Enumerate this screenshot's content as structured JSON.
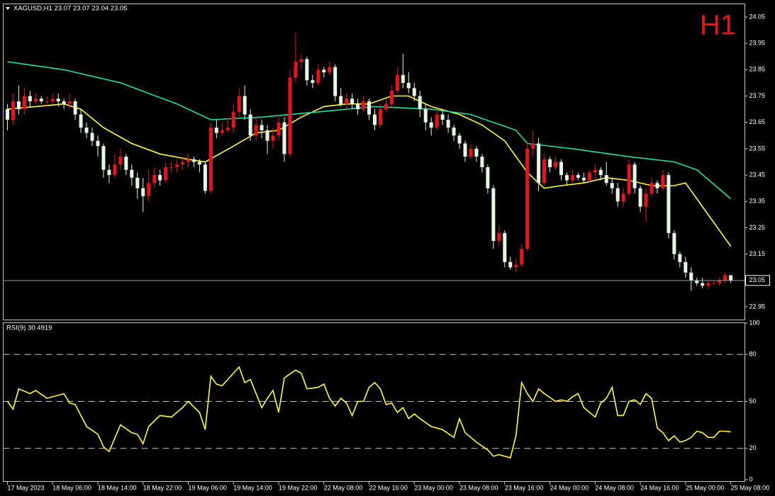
{
  "chart_data": [
    {
      "type": "candlestick",
      "title": "XAGUSD,H1  23.07 23.07 23.04 23.05",
      "annotation": "H1",
      "bull_color": "#e8141c",
      "bear_color": "#e4f8e4",
      "ylim": [
        22.9,
        24.1
      ],
      "yticks": [
        22.95,
        23.05,
        23.15,
        23.25,
        23.35,
        23.45,
        23.55,
        23.65,
        23.75,
        23.85,
        23.95,
        24.05
      ],
      "xlim": [
        -0.75,
        130.5
      ],
      "last_price": 23.05,
      "ohlc": [
        [
          23.7,
          23.72,
          23.62,
          23.66
        ],
        [
          23.66,
          23.76,
          23.64,
          23.73
        ],
        [
          23.73,
          23.79,
          23.68,
          23.7
        ],
        [
          23.7,
          23.78,
          23.68,
          23.75
        ],
        [
          23.75,
          23.77,
          23.71,
          23.73
        ],
        [
          23.73,
          23.76,
          23.72,
          23.74
        ],
        [
          23.74,
          23.75,
          23.72,
          23.73
        ],
        [
          23.73,
          23.75,
          23.71,
          23.73
        ],
        [
          23.73,
          23.76,
          23.72,
          23.74
        ],
        [
          23.74,
          23.76,
          23.71,
          23.73
        ],
        [
          23.73,
          23.74,
          23.7,
          23.72
        ],
        [
          23.72,
          23.76,
          23.7,
          23.73
        ],
        [
          23.73,
          23.74,
          23.66,
          23.68
        ],
        [
          23.68,
          23.7,
          23.61,
          23.63
        ],
        [
          23.63,
          23.65,
          23.59,
          23.61
        ],
        [
          23.61,
          23.63,
          23.56,
          23.58
        ],
        [
          23.58,
          23.6,
          23.52,
          23.56
        ],
        [
          23.56,
          23.57,
          23.44,
          23.47
        ],
        [
          23.47,
          23.49,
          23.42,
          23.45
        ],
        [
          23.45,
          23.53,
          23.44,
          23.49
        ],
        [
          23.49,
          23.55,
          23.47,
          23.52
        ],
        [
          23.52,
          23.53,
          23.45,
          23.47
        ],
        [
          23.47,
          23.49,
          23.41,
          23.44
        ],
        [
          23.44,
          23.46,
          23.36,
          23.4
        ],
        [
          23.4,
          23.44,
          23.31,
          23.37
        ],
        [
          23.37,
          23.47,
          23.35,
          23.42
        ],
        [
          23.42,
          23.48,
          23.4,
          23.45
        ],
        [
          23.45,
          23.47,
          23.41,
          23.43
        ],
        [
          23.43,
          23.5,
          23.42,
          23.48
        ],
        [
          23.48,
          23.5,
          23.46,
          23.48
        ],
        [
          23.48,
          23.51,
          23.46,
          23.49
        ],
        [
          23.49,
          23.52,
          23.47,
          23.5
        ],
        [
          23.5,
          23.53,
          23.48,
          23.51
        ],
        [
          23.51,
          23.52,
          23.48,
          23.5
        ],
        [
          23.5,
          23.51,
          23.46,
          23.49
        ],
        [
          23.49,
          23.5,
          23.38,
          23.39
        ],
        [
          23.39,
          23.65,
          23.38,
          23.63
        ],
        [
          23.63,
          23.66,
          23.59,
          23.61
        ],
        [
          23.61,
          23.65,
          23.6,
          23.62
        ],
        [
          23.62,
          23.67,
          23.61,
          23.63
        ],
        [
          23.63,
          23.72,
          23.61,
          23.69
        ],
        [
          23.69,
          23.78,
          23.67,
          23.75
        ],
        [
          23.75,
          23.79,
          23.66,
          23.68
        ],
        [
          23.68,
          23.7,
          23.58,
          23.6
        ],
        [
          23.6,
          23.67,
          23.58,
          23.64
        ],
        [
          23.64,
          23.66,
          23.59,
          23.62
        ],
        [
          23.62,
          23.64,
          23.53,
          23.58
        ],
        [
          23.58,
          23.63,
          23.55,
          23.6
        ],
        [
          23.6,
          23.68,
          23.58,
          23.65
        ],
        [
          23.65,
          23.67,
          23.5,
          23.53
        ],
        [
          23.53,
          23.85,
          23.52,
          23.82
        ],
        [
          23.82,
          23.99,
          23.8,
          23.88
        ],
        [
          23.88,
          23.91,
          23.85,
          23.89
        ],
        [
          23.89,
          23.9,
          23.79,
          23.81
        ],
        [
          23.81,
          23.83,
          23.78,
          23.8
        ],
        [
          23.8,
          23.87,
          23.79,
          23.85
        ],
        [
          23.85,
          23.86,
          23.82,
          23.84
        ],
        [
          23.84,
          23.88,
          23.83,
          23.86
        ],
        [
          23.86,
          23.87,
          23.73,
          23.75
        ],
        [
          23.75,
          23.78,
          23.71,
          23.72
        ],
        [
          23.72,
          23.76,
          23.7,
          23.74
        ],
        [
          23.74,
          23.76,
          23.7,
          23.72
        ],
        [
          23.72,
          23.74,
          23.68,
          23.7
        ],
        [
          23.7,
          23.75,
          23.69,
          23.73
        ],
        [
          23.73,
          23.74,
          23.66,
          23.68
        ],
        [
          23.68,
          23.7,
          23.62,
          23.64
        ],
        [
          23.64,
          23.72,
          23.63,
          23.7
        ],
        [
          23.7,
          23.74,
          23.69,
          23.72
        ],
        [
          23.72,
          23.79,
          23.71,
          23.77
        ],
        [
          23.77,
          23.86,
          23.76,
          23.83
        ],
        [
          23.83,
          23.91,
          23.78,
          23.8
        ],
        [
          23.8,
          23.84,
          23.76,
          23.78
        ],
        [
          23.78,
          23.8,
          23.73,
          23.75
        ],
        [
          23.75,
          23.77,
          23.67,
          23.7
        ],
        [
          23.7,
          23.72,
          23.62,
          23.65
        ],
        [
          23.65,
          23.67,
          23.6,
          23.63
        ],
        [
          23.63,
          23.7,
          23.62,
          23.68
        ],
        [
          23.68,
          23.7,
          23.64,
          23.66
        ],
        [
          23.66,
          23.68,
          23.61,
          23.63
        ],
        [
          23.63,
          23.64,
          23.58,
          23.6
        ],
        [
          23.6,
          23.61,
          23.55,
          23.57
        ],
        [
          23.57,
          23.58,
          23.5,
          23.52
        ],
        [
          23.52,
          23.57,
          23.51,
          23.55
        ],
        [
          23.55,
          23.56,
          23.5,
          23.52
        ],
        [
          23.52,
          23.53,
          23.46,
          23.48
        ],
        [
          23.48,
          23.49,
          23.38,
          23.4
        ],
        [
          23.4,
          23.41,
          23.17,
          23.2
        ],
        [
          23.2,
          23.26,
          23.18,
          23.23
        ],
        [
          23.23,
          23.24,
          23.1,
          23.12
        ],
        [
          23.12,
          23.14,
          23.09,
          23.1
        ],
        [
          23.1,
          23.13,
          23.08,
          23.11
        ],
        [
          23.11,
          23.19,
          23.1,
          23.17
        ],
        [
          23.17,
          23.58,
          23.16,
          23.55
        ],
        [
          23.55,
          23.62,
          23.52,
          23.57
        ],
        [
          23.57,
          23.59,
          23.39,
          23.42
        ],
        [
          23.42,
          23.53,
          23.41,
          23.51
        ],
        [
          23.51,
          23.52,
          23.46,
          23.48
        ],
        [
          23.48,
          23.52,
          23.47,
          23.5
        ],
        [
          23.5,
          23.51,
          23.43,
          23.45
        ],
        [
          23.45,
          23.46,
          23.41,
          23.43
        ],
        [
          23.43,
          23.47,
          23.42,
          23.45
        ],
        [
          23.45,
          23.46,
          23.43,
          23.44
        ],
        [
          23.44,
          23.46,
          23.42,
          23.43
        ],
        [
          23.43,
          23.47,
          23.42,
          23.46
        ],
        [
          23.46,
          23.49,
          23.43,
          23.47
        ],
        [
          23.47,
          23.48,
          23.43,
          23.45
        ],
        [
          23.45,
          23.5,
          23.41,
          23.42
        ],
        [
          23.42,
          23.44,
          23.38,
          23.4
        ],
        [
          23.4,
          23.42,
          23.33,
          23.35
        ],
        [
          23.35,
          23.4,
          23.33,
          23.38
        ],
        [
          23.38,
          23.51,
          23.37,
          23.49
        ],
        [
          23.49,
          23.5,
          23.38,
          23.4
        ],
        [
          23.4,
          23.41,
          23.31,
          23.33
        ],
        [
          23.33,
          23.4,
          23.27,
          23.38
        ],
        [
          23.38,
          23.44,
          23.37,
          23.42
        ],
        [
          23.42,
          23.43,
          23.38,
          23.4
        ],
        [
          23.4,
          23.47,
          23.39,
          23.45
        ],
        [
          23.45,
          23.46,
          23.21,
          23.23
        ],
        [
          23.23,
          23.24,
          23.13,
          23.15
        ],
        [
          23.15,
          23.16,
          23.1,
          23.12
        ],
        [
          23.12,
          23.14,
          23.06,
          23.08
        ],
        [
          23.08,
          23.1,
          23.01,
          23.05
        ],
        [
          23.05,
          23.06,
          23.03,
          23.04
        ],
        [
          23.04,
          23.06,
          23.02,
          23.03
        ],
        [
          23.03,
          23.05,
          23.02,
          23.04
        ],
        [
          23.04,
          23.05,
          23.03,
          23.04
        ],
        [
          23.04,
          23.06,
          23.03,
          23.05
        ],
        [
          23.05,
          23.08,
          23.04,
          23.07
        ],
        [
          23.07,
          23.07,
          23.04,
          23.05
        ]
      ],
      "series": [
        {
          "color": "#ffff30",
          "x": [
            0,
            5,
            10,
            13,
            17,
            22,
            27,
            32,
            35,
            40,
            44,
            48,
            52,
            56,
            60,
            64,
            68,
            71,
            75,
            80,
            84,
            88,
            92,
            95,
            98,
            102,
            106,
            110,
            114,
            118,
            120,
            124,
            128
          ],
          "values": [
            23.7,
            23.71,
            23.72,
            23.7,
            23.63,
            23.57,
            23.53,
            23.51,
            23.5,
            23.56,
            23.61,
            23.62,
            23.67,
            23.71,
            23.72,
            23.72,
            23.75,
            23.75,
            23.71,
            23.68,
            23.64,
            23.58,
            23.46,
            23.4,
            23.41,
            23.42,
            23.44,
            23.43,
            23.41,
            23.41,
            23.42,
            23.3,
            23.18
          ]
        },
        {
          "color": "#20e0a0",
          "x": [
            0,
            10,
            20,
            30,
            36,
            45,
            55,
            65,
            75,
            82,
            90,
            92,
            100,
            110,
            118,
            122,
            128
          ],
          "values": [
            23.88,
            23.85,
            23.8,
            23.72,
            23.66,
            23.67,
            23.69,
            23.71,
            23.7,
            23.68,
            23.62,
            23.57,
            23.55,
            23.52,
            23.5,
            23.47,
            23.36
          ]
        }
      ]
    },
    {
      "type": "line",
      "title": "RSI(9) 30.4919",
      "color": "#ffff30",
      "ylim": [
        0,
        100
      ],
      "yticks": [
        0,
        20,
        50,
        80,
        100
      ],
      "xlim": [
        -0.75,
        130.5
      ],
      "xticks": [
        {
          "value": 0,
          "label": "17 May 2023"
        },
        {
          "value": 8,
          "label": "18 May 06:00"
        },
        {
          "value": 16,
          "label": "18 May 14:00"
        },
        {
          "value": 24,
          "label": "18 May 22:00"
        },
        {
          "value": 32,
          "label": "19 May 06:00"
        },
        {
          "value": 40,
          "label": "19 May 14:00"
        },
        {
          "value": 48,
          "label": "19 May 22:00"
        },
        {
          "value": 56,
          "label": "22 May 08:00"
        },
        {
          "value": 64,
          "label": "22 May 16:00"
        },
        {
          "value": 72,
          "label": "23 May 00:00"
        },
        {
          "value": 80,
          "label": "23 May 08:00"
        },
        {
          "value": 88,
          "label": "23 May 16:00"
        },
        {
          "value": 96,
          "label": "24 May 00:00"
        },
        {
          "value": 104,
          "label": "24 May 08:00"
        },
        {
          "value": 112,
          "label": "24 May 16:00"
        },
        {
          "value": 120,
          "label": "25 May 00:00"
        },
        {
          "value": 128,
          "label": "25 May 08:00"
        }
      ],
      "x": [
        0,
        1,
        2,
        4,
        5,
        7,
        10,
        11,
        12,
        14,
        16,
        17,
        18,
        20,
        22,
        23,
        24,
        25,
        27,
        29,
        31,
        32,
        34,
        35,
        36,
        37,
        38,
        41,
        42,
        43,
        45,
        46,
        47,
        48,
        49,
        51,
        52,
        53,
        55,
        56,
        57,
        58,
        59,
        60,
        61,
        62,
        63,
        64,
        65,
        66,
        67,
        68,
        69,
        70,
        71,
        72,
        73,
        75,
        77,
        79,
        80,
        81,
        82,
        83,
        85,
        86,
        87,
        89,
        90,
        91,
        92,
        93,
        94,
        95,
        97,
        98,
        99,
        100,
        101,
        102,
        104,
        105,
        106,
        107,
        108,
        109,
        110,
        111,
        112,
        113,
        114,
        115,
        116,
        117,
        118,
        119,
        120,
        121,
        122,
        123,
        124,
        125,
        126,
        127,
        128
      ],
      "values": [
        50,
        45,
        58,
        55,
        57,
        52,
        55,
        49,
        48,
        34,
        29,
        21,
        18,
        35,
        30,
        29,
        23,
        34,
        41,
        40,
        46,
        50,
        43,
        32,
        66,
        61,
        60,
        72,
        62,
        64,
        46,
        52,
        57,
        43,
        65,
        70,
        68,
        58,
        59,
        61,
        52,
        47,
        52,
        49,
        41,
        50,
        50,
        59,
        62,
        58,
        48,
        49,
        43,
        46,
        39,
        42,
        39,
        34,
        32,
        27,
        39,
        30,
        27,
        24,
        19,
        15,
        16,
        14,
        28,
        62,
        55,
        50,
        58,
        55,
        50,
        51,
        50,
        53,
        55,
        46,
        40,
        49,
        52,
        59,
        41,
        41,
        50,
        51,
        48,
        55,
        52,
        33,
        30,
        25,
        28,
        24,
        25,
        27,
        31,
        30,
        27,
        27,
        31,
        31,
        30.49
      ]
    }
  ]
}
